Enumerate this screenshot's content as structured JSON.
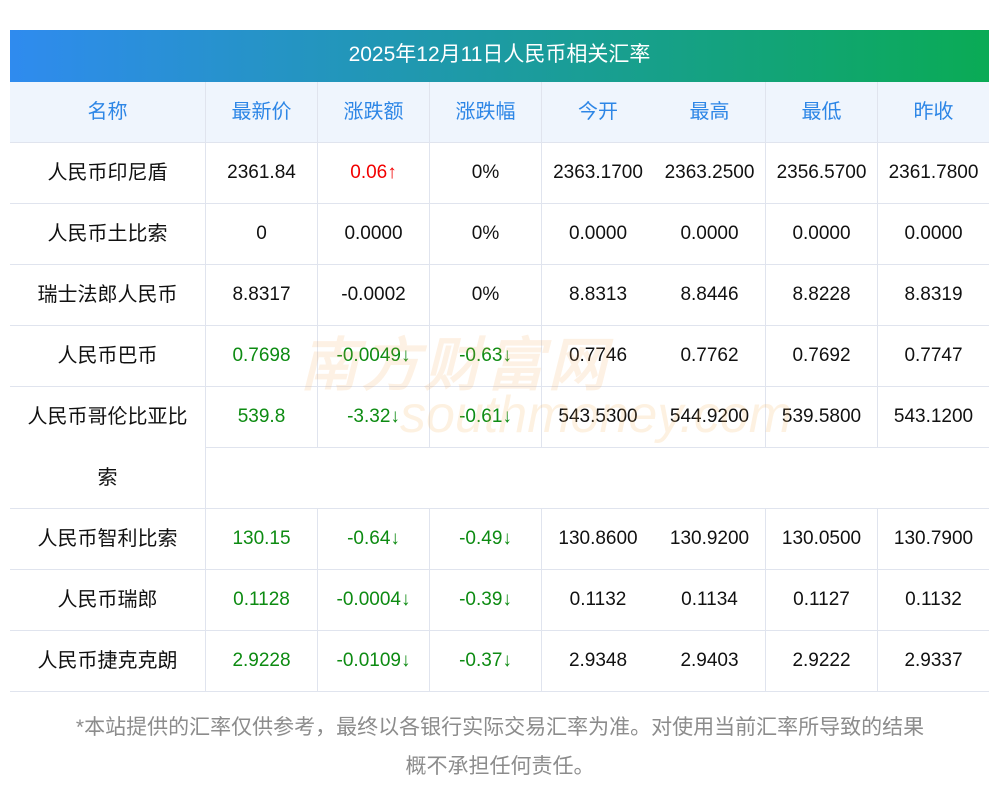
{
  "title": "2025年12月11日人民币相关汇率",
  "headers": [
    "名称",
    "最新价",
    "涨跌额",
    "涨跌幅",
    "今开",
    "最高",
    "最低",
    "昨收"
  ],
  "rows": [
    {
      "cells": [
        "人民币印尼盾",
        "2361.84",
        "0.06↑",
        "0%",
        "2363.1700",
        "2363.2500",
        "2356.5700",
        "2361.7800"
      ],
      "trend": [
        "",
        "",
        "up",
        "",
        "",
        "",
        "",
        ""
      ]
    },
    {
      "cells": [
        "人民币土比索",
        "0",
        "0.0000",
        "0%",
        "0.0000",
        "0.0000",
        "0.0000",
        "0.0000"
      ],
      "trend": [
        "",
        "",
        "",
        "",
        "",
        "",
        "",
        ""
      ]
    },
    {
      "cells": [
        "瑞士法郎人民币",
        "8.8317",
        "-0.0002",
        "0%",
        "8.8313",
        "8.8446",
        "8.8228",
        "8.8319"
      ],
      "trend": [
        "",
        "",
        "",
        "",
        "",
        "",
        "",
        ""
      ]
    },
    {
      "cells": [
        "人民币巴币",
        "0.7698",
        "-0.0049↓",
        "-0.63↓",
        "0.7746",
        "0.7762",
        "0.7692",
        "0.7747"
      ],
      "trend": [
        "",
        "down",
        "down",
        "down",
        "",
        "",
        "",
        ""
      ]
    },
    {
      "cells": [
        "人民币哥伦比亚比索",
        "539.8",
        "-3.32↓",
        "-0.61↓",
        "543.5300",
        "544.9200",
        "539.5800",
        "543.1200"
      ],
      "trend": [
        "",
        "down",
        "down",
        "down",
        "",
        "",
        "",
        ""
      ],
      "tall": true
    },
    {
      "cells": [
        "人民币智利比索",
        "130.15",
        "-0.64↓",
        "-0.49↓",
        "130.8600",
        "130.9200",
        "130.0500",
        "130.7900"
      ],
      "trend": [
        "",
        "down",
        "down",
        "down",
        "",
        "",
        "",
        ""
      ]
    },
    {
      "cells": [
        "人民币瑞郎",
        "0.1128",
        "-0.0004↓",
        "-0.39↓",
        "0.1132",
        "0.1134",
        "0.1127",
        "0.1132"
      ],
      "trend": [
        "",
        "down",
        "down",
        "down",
        "",
        "",
        "",
        ""
      ]
    },
    {
      "cells": [
        "人民币捷克克朗",
        "2.9228",
        "-0.0109↓",
        "-0.37↓",
        "2.9348",
        "2.9403",
        "2.9222",
        "2.9337"
      ],
      "trend": [
        "",
        "down",
        "down",
        "down",
        "",
        "",
        "",
        ""
      ]
    }
  ],
  "watermark": {
    "cn": "南方财富网",
    "en": "southmoney.com"
  },
  "note": [
    "*本站提供的汇率仅供参考，最终以各银行实际交易汇率为准。对使用当前汇率所导致的结果",
    "概不承担任何责任。"
  ],
  "colors": {
    "up": "#f20000",
    "down": "#0d8b12",
    "header_text": "#2d86e6",
    "title_start": "#2f8bef",
    "title_end": "#0aab55"
  }
}
